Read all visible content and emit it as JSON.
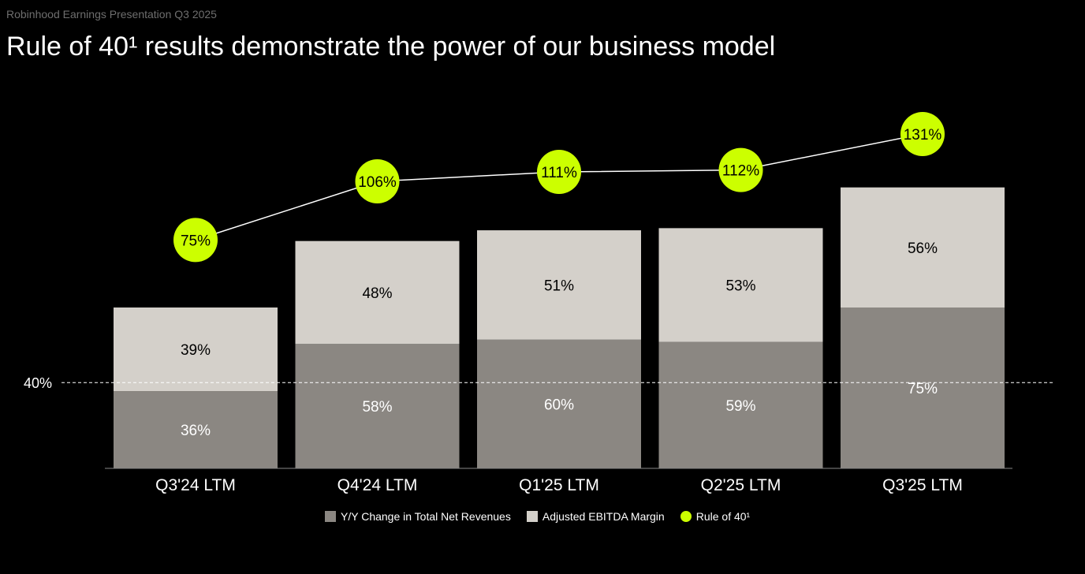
{
  "header": {
    "subtitle": "Robinhood Earnings Presentation Q3 2025",
    "title": "Rule of 40¹ results demonstrate the power of our business model"
  },
  "colors": {
    "revenue": "#8b8782",
    "ebitda": "#d4d0ca",
    "rule": "#ccff00"
  },
  "chart_data": {
    "type": "bar",
    "stacked": true,
    "categories": [
      "Q3'24 LTM",
      "Q4'24 LTM",
      "Q1'25 LTM",
      "Q2'25 LTM",
      "Q3'25 LTM"
    ],
    "series": [
      {
        "name": "Y/Y Change in Total Net Revenues",
        "values": [
          36,
          58,
          60,
          59,
          75
        ],
        "labels": [
          "36%",
          "58%",
          "60%",
          "59%",
          "75%"
        ]
      },
      {
        "name": "Adjusted EBITDA Margin",
        "values": [
          39,
          48,
          51,
          53,
          56
        ],
        "labels": [
          "39%",
          "48%",
          "51%",
          "53%",
          "56%"
        ]
      },
      {
        "name": "Rule of 40¹",
        "type": "line",
        "values": [
          75,
          106,
          111,
          112,
          131
        ],
        "labels": [
          "75%",
          "106%",
          "111%",
          "112%",
          "131%"
        ]
      }
    ],
    "reference_line": {
      "value": 40,
      "label": "40%"
    },
    "legend": "bottom"
  }
}
